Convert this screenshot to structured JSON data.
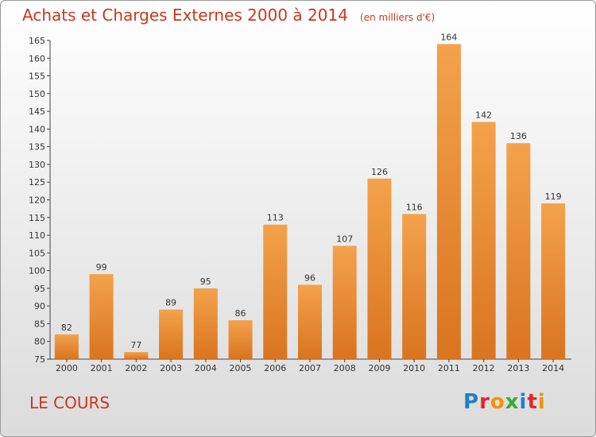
{
  "header": {
    "title": "Achats et Charges Externes 2000 à 2014",
    "unit": "(en milliers d'€)"
  },
  "footer": {
    "commune": "LE COURS",
    "logo_text": "Proxiti",
    "logo_colors": [
      "#1f7fc7",
      "#e3262d",
      "#f39200",
      "#3aa935",
      "#1f7fc7",
      "#e3262d",
      "#f39200"
    ]
  },
  "colors": {
    "bar_top": "#f4a24c",
    "bar_bottom": "#d9741f",
    "title": "#c8381e"
  },
  "chart_data": {
    "type": "bar",
    "title": "Achats et Charges Externes 2000 à 2014",
    "subtitle": "(en milliers d'€)",
    "categories": [
      "2000",
      "2001",
      "2002",
      "2003",
      "2004",
      "2005",
      "2006",
      "2007",
      "2008",
      "2009",
      "2010",
      "2011",
      "2012",
      "2013",
      "2014"
    ],
    "values": [
      82,
      99,
      77,
      89,
      95,
      86,
      113,
      96,
      107,
      126,
      116,
      164,
      142,
      136,
      119
    ],
    "ylim": [
      75,
      165
    ],
    "yticks": [
      75,
      80,
      85,
      90,
      95,
      100,
      105,
      110,
      115,
      120,
      125,
      130,
      135,
      140,
      145,
      150,
      155,
      160,
      165
    ],
    "grid": false,
    "value_labels": true
  }
}
